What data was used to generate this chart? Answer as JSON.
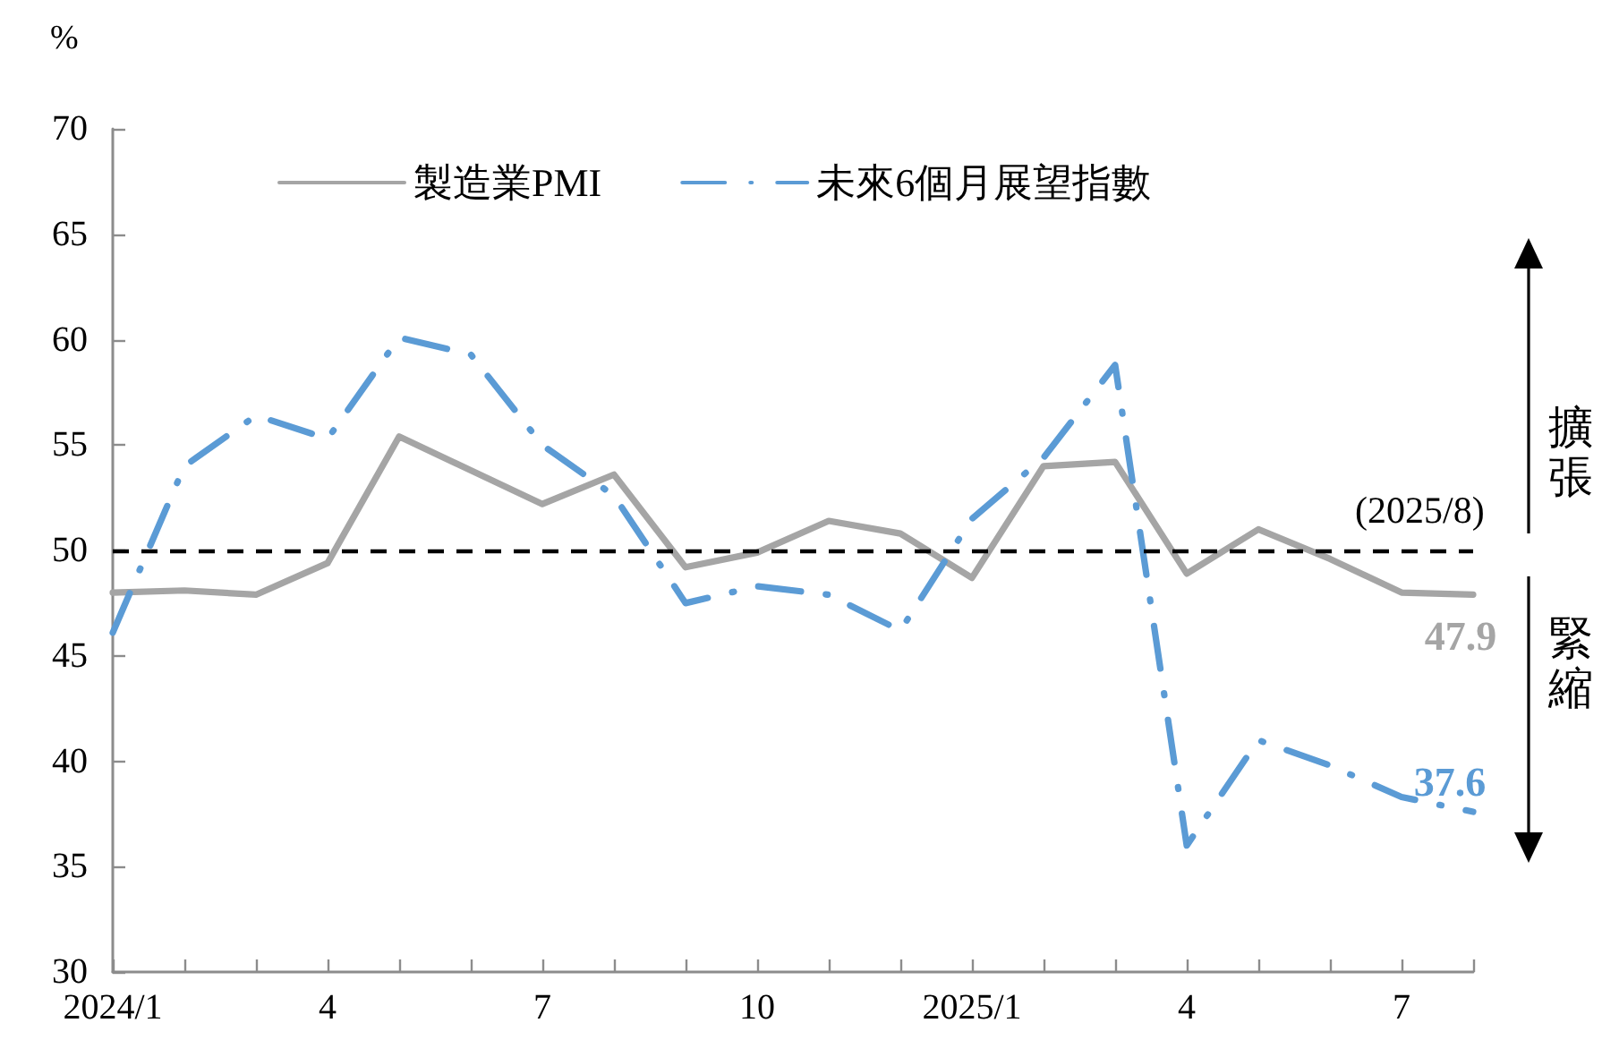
{
  "chart_data": {
    "type": "line",
    "ylabel": "%",
    "categories": [
      "2024/1",
      null,
      null,
      "4",
      null,
      null,
      "7",
      null,
      null,
      "10",
      null,
      null,
      "2025/1",
      null,
      null,
      "4",
      null,
      null,
      "7",
      null
    ],
    "series": [
      {
        "name": "製造業PMI",
        "color": "#a5a5a5",
        "line_style": "solid",
        "values": [
          48.0,
          48.1,
          47.9,
          49.4,
          55.4,
          53.8,
          52.2,
          53.6,
          49.2,
          49.9,
          51.4,
          50.8,
          48.7,
          54.0,
          54.2,
          48.9,
          51.0,
          49.6,
          48.0,
          47.9
        ],
        "value_labels": [
          null,
          null,
          null,
          null,
          null,
          null,
          null,
          null,
          null,
          null,
          null,
          null,
          null,
          null,
          null,
          null,
          null,
          null,
          null,
          "47.9"
        ]
      },
      {
        "name": "未來6個月展望指數",
        "color": "#5b9bd5",
        "line_style": "dashed",
        "values": [
          46.1,
          54.0,
          56.4,
          55.3,
          60.1,
          59.3,
          55.0,
          52.6,
          47.5,
          48.3,
          47.9,
          46.2,
          51.5,
          54.4,
          58.8,
          36.0,
          41.0,
          39.8,
          38.3,
          37.6
        ],
        "value_labels": [
          null,
          null,
          null,
          null,
          null,
          null,
          null,
          null,
          null,
          null,
          null,
          null,
          null,
          null,
          null,
          null,
          null,
          null,
          null,
          "37.6"
        ]
      }
    ],
    "ylim": [
      30,
      70
    ],
    "yticks": [
      30,
      35,
      40,
      45,
      50,
      55,
      60,
      65,
      70
    ],
    "grid": false,
    "legend": "top",
    "marker": "none",
    "ref_lines": [
      {
        "axis": "y",
        "value": 50,
        "color": "#000000",
        "line_style": "dashed"
      }
    ],
    "annotations": [
      "(2025/8)",
      "擴張",
      "緊縮"
    ]
  }
}
